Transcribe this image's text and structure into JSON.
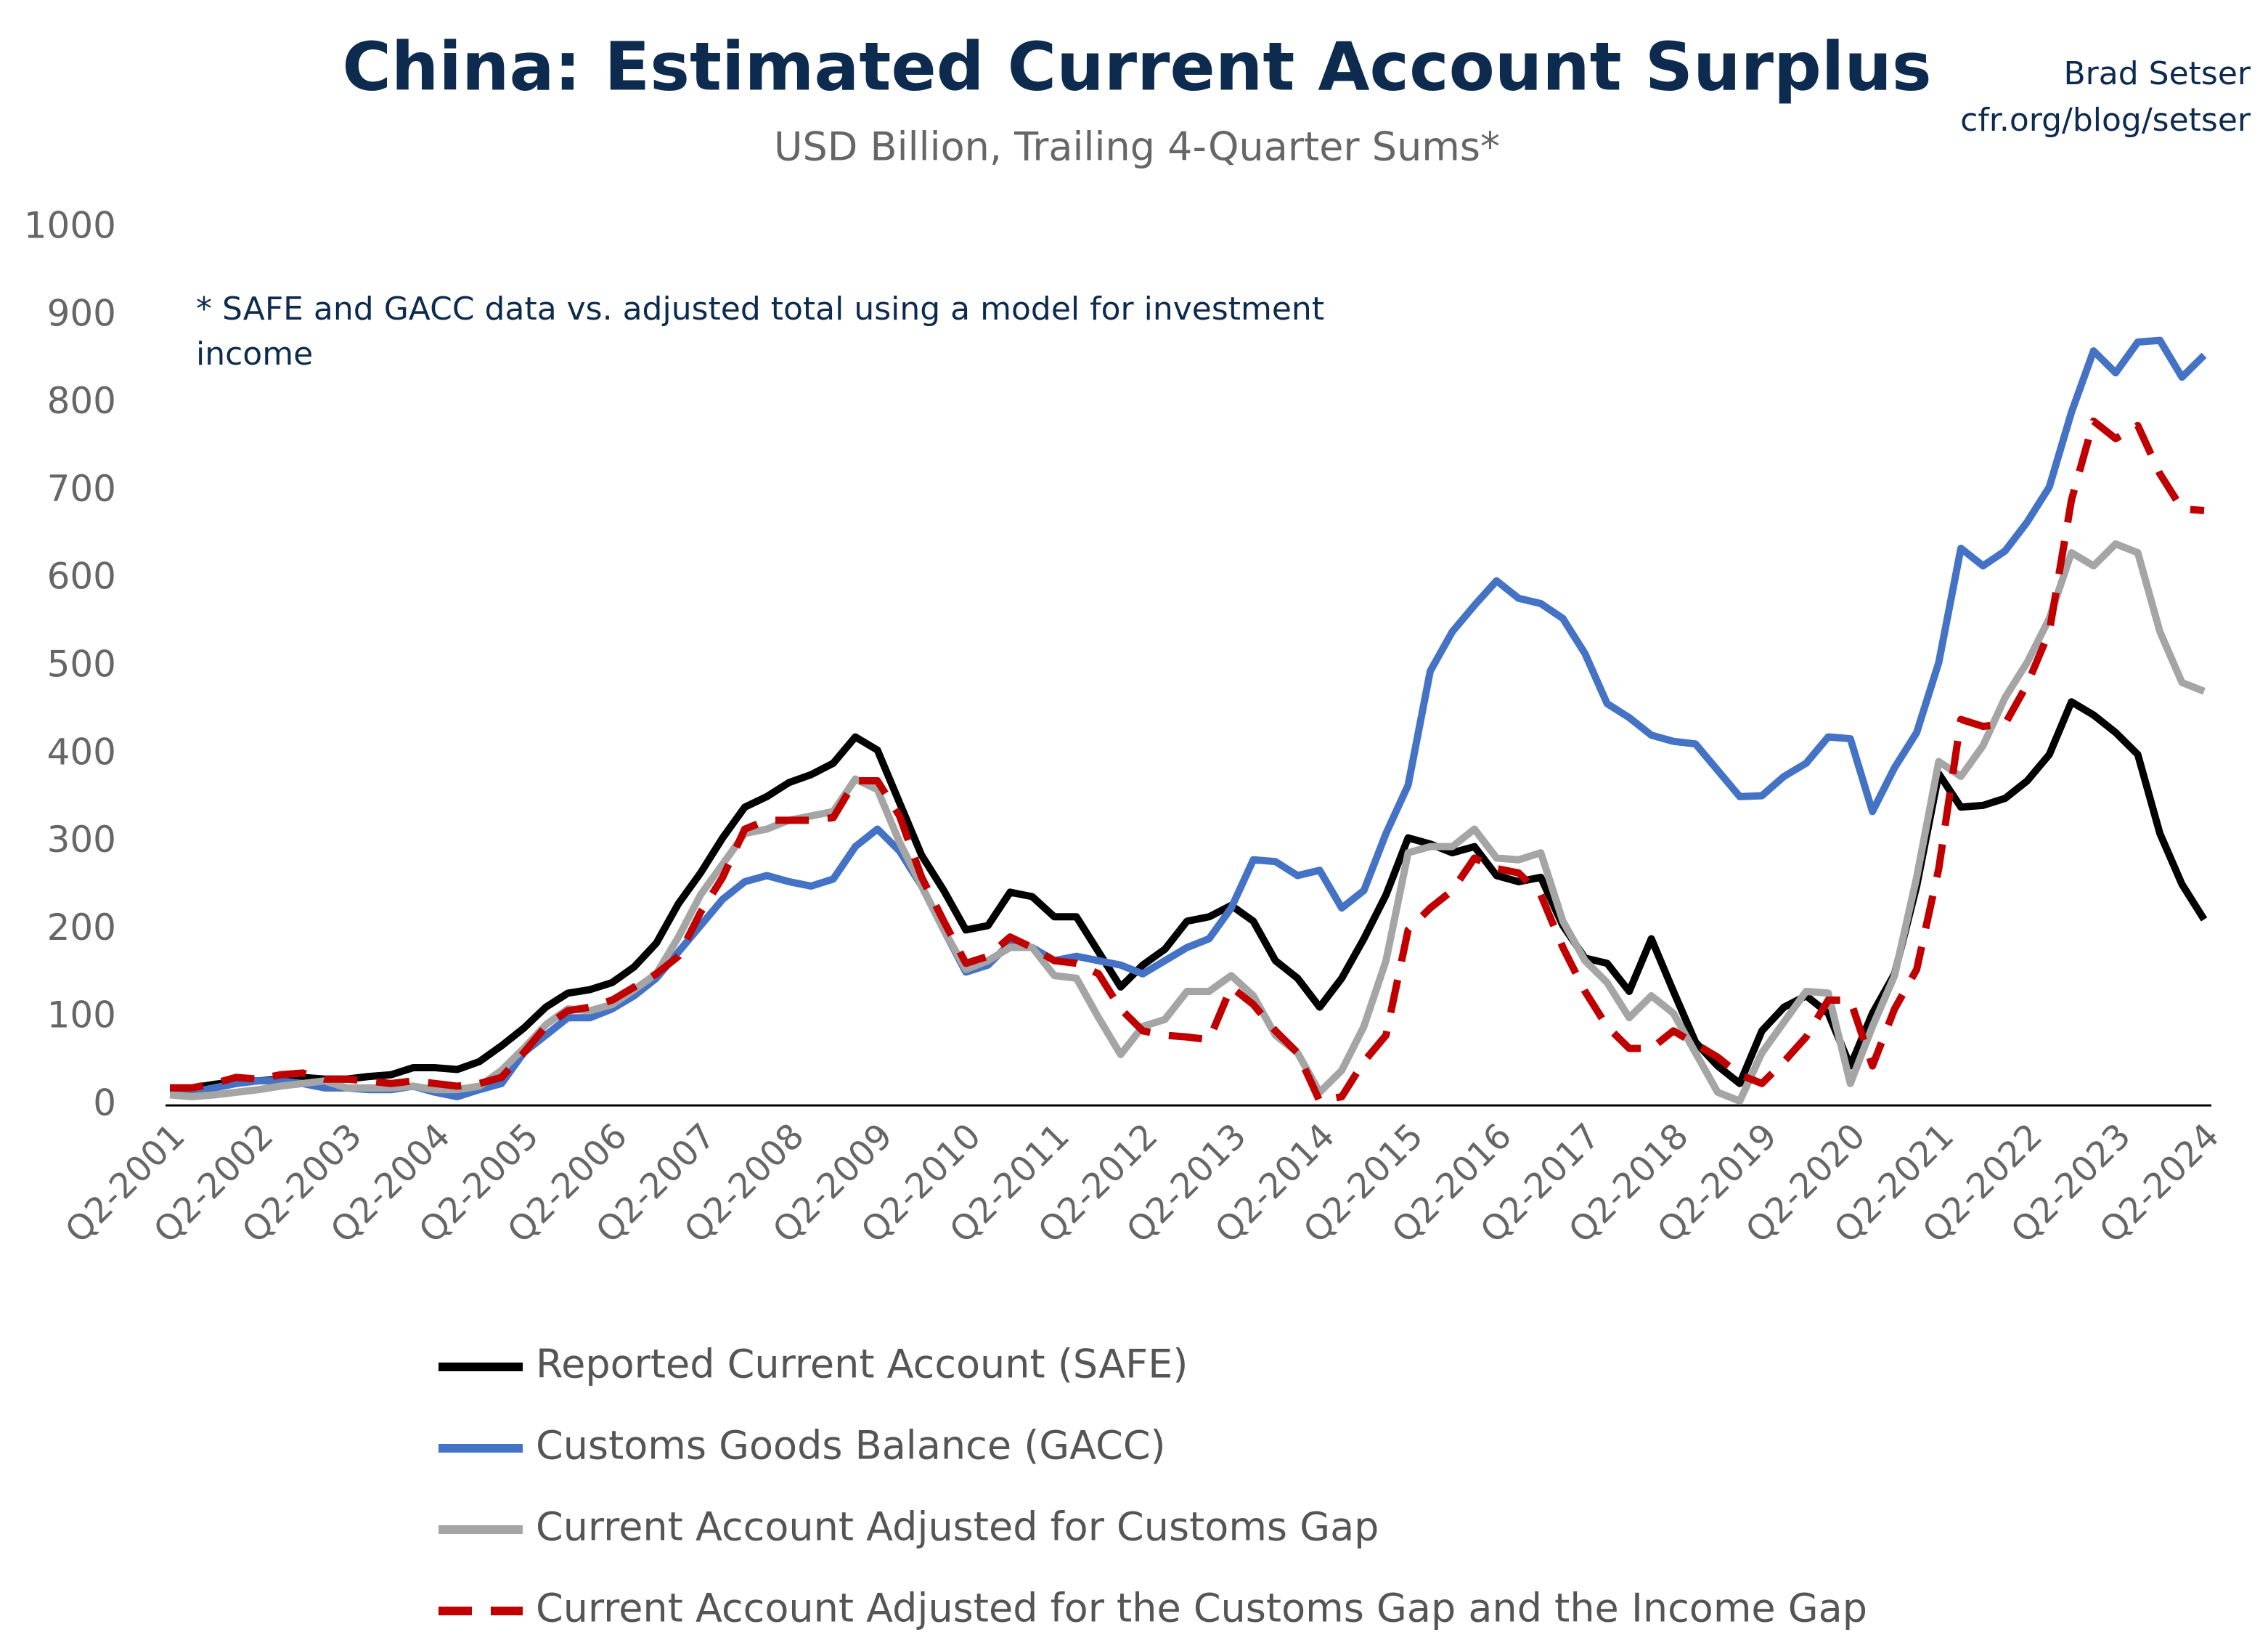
{
  "chart_data": {
    "type": "line",
    "title": "China: Estimated Current Account Surplus",
    "subtitle": "USD Billion, Trailing 4-Quarter Sums*",
    "source": [
      "Brad Setser",
      "cfr.org/blog/setser"
    ],
    "annotations": [
      "* SAFE and GACC data vs. adjusted total using a model for investment",
      "income"
    ],
    "categories": [
      "Q2-2001",
      null,
      null,
      null,
      "Q2-2002",
      null,
      null,
      null,
      "Q2-2003",
      null,
      null,
      null,
      "Q2-2004",
      null,
      null,
      null,
      "Q2-2005",
      null,
      null,
      null,
      "Q2-2006",
      null,
      null,
      null,
      "Q2-2007",
      null,
      null,
      null,
      "Q2-2008",
      null,
      null,
      null,
      "Q2-2009",
      null,
      null,
      null,
      "Q2-2010",
      null,
      null,
      null,
      "Q2-2011",
      null,
      null,
      null,
      "Q2-2012",
      null,
      null,
      null,
      "Q2-2013",
      null,
      null,
      null,
      "Q2-2014",
      null,
      null,
      null,
      "Q2-2015",
      null,
      null,
      null,
      "Q2-2016",
      null,
      null,
      null,
      "Q2-2017",
      null,
      null,
      null,
      "Q2-2018",
      null,
      null,
      null,
      "Q2-2019",
      null,
      null,
      null,
      "Q2-2020",
      null,
      null,
      null,
      "Q2-2021",
      null,
      null,
      null,
      "Q2-2022",
      null,
      null,
      null,
      "Q2-2023",
      null,
      null,
      null,
      "Q2-2024"
    ],
    "ylim": [
      0,
      1000
    ],
    "yticks": [
      0,
      100,
      200,
      300,
      400,
      500,
      600,
      700,
      800,
      900,
      1000
    ],
    "grid": false,
    "series": [
      {
        "name": "Reported Current Account (SAFE)",
        "color": "#000000",
        "line_style": "solid",
        "values": [
          20,
          20,
          24,
          27,
          28,
          30,
          32,
          30,
          30,
          33,
          35,
          43,
          43,
          41,
          50,
          68,
          88,
          112,
          128,
          132,
          140,
          158,
          185,
          230,
          265,
          305,
          340,
          352,
          368,
          377,
          390,
          420,
          405,
          345,
          285,
          245,
          200,
          205,
          243,
          238,
          215,
          215,
          175,
          135,
          160,
          178,
          210,
          215,
          228,
          210,
          165,
          145,
          112,
          145,
          190,
          240,
          305,
          298,
          288,
          295,
          262,
          255,
          260,
          205,
          168,
          162,
          130,
          190,
          130,
          72,
          45,
          25,
          85,
          112,
          125,
          105,
          45,
          105,
          150,
          250,
          378,
          340,
          342,
          350,
          370,
          400,
          460,
          445,
          425,
          400,
          310,
          252,
          212
        ]
      },
      {
        "name": "Customs Goods Balance (GACC)",
        "color": "#4472c4",
        "line_style": "solid",
        "values": [
          15,
          15,
          20,
          25,
          28,
          28,
          25,
          20,
          20,
          18,
          18,
          22,
          15,
          10,
          18,
          25,
          60,
          80,
          100,
          100,
          110,
          125,
          145,
          175,
          205,
          235,
          255,
          262,
          255,
          250,
          258,
          295,
          315,
          290,
          250,
          200,
          152,
          160,
          185,
          180,
          165,
          170,
          165,
          160,
          150,
          165,
          180,
          190,
          225,
          280,
          278,
          262,
          268,
          225,
          245,
          310,
          365,
          495,
          540,
          570,
          598,
          578,
          572,
          555,
          515,
          458,
          442,
          422,
          415,
          412,
          382,
          352,
          353,
          375,
          390,
          420,
          418,
          335,
          385,
          425,
          505,
          635,
          615,
          632,
          665,
          705,
          790,
          860,
          835,
          870,
          872,
          830,
          855
        ]
      },
      {
        "name": "Current Account Adjusted for Customs Gap",
        "color": "#a5a5a5",
        "line_style": "solid",
        "values": [
          12,
          10,
          12,
          15,
          18,
          22,
          25,
          28,
          20,
          20,
          20,
          22,
          18,
          18,
          22,
          40,
          65,
          92,
          110,
          108,
          115,
          132,
          150,
          192,
          240,
          275,
          310,
          315,
          325,
          330,
          335,
          372,
          360,
          300,
          250,
          200,
          155,
          165,
          180,
          180,
          148,
          145,
          100,
          58,
          90,
          98,
          130,
          130,
          148,
          125,
          80,
          60,
          15,
          40,
          90,
          165,
          288,
          295,
          295,
          315,
          282,
          280,
          288,
          210,
          165,
          140,
          100,
          125,
          105,
          60,
          15,
          5,
          60,
          95,
          130,
          128,
          25,
          90,
          148,
          260,
          392,
          375,
          410,
          465,
          505,
          555,
          630,
          615,
          640,
          630,
          540,
          482,
          472
        ]
      },
      {
        "name": "Current Account Adjusted for the Customs Gap and the Income Gap",
        "color": "#c00000",
        "line_style": "dashed",
        "values": [
          20,
          20,
          25,
          32,
          30,
          35,
          37,
          30,
          30,
          28,
          25,
          28,
          25,
          22,
          25,
          32,
          60,
          90,
          108,
          112,
          120,
          135,
          150,
          170,
          220,
          260,
          315,
          325,
          325,
          325,
          328,
          370,
          370,
          330,
          260,
          210,
          162,
          170,
          192,
          180,
          165,
          162,
          150,
          110,
          85,
          80,
          78,
          75,
          135,
          115,
          85,
          60,
          5,
          10,
          50,
          80,
          200,
          225,
          245,
          282,
          270,
          265,
          240,
          180,
          130,
          90,
          65,
          65,
          85,
          70,
          55,
          35,
          25,
          50,
          78,
          120,
          120,
          45,
          110,
          155,
          270,
          440,
          432,
          435,
          480,
          540,
          690,
          780,
          760,
          775,
          720,
          680,
          678
        ]
      }
    ]
  }
}
